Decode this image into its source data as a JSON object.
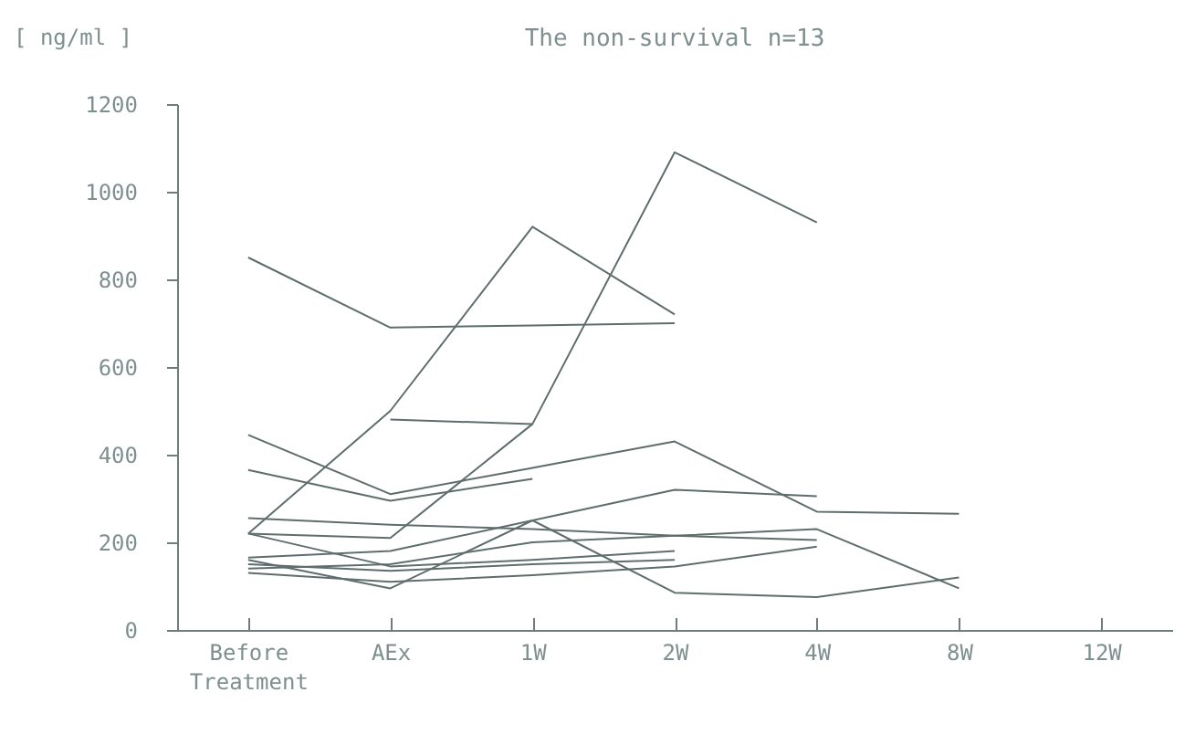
{
  "chart_data": {
    "type": "line",
    "title": "The non-survival n=13",
    "ylabel": "[ ng/ml ]",
    "categories": [
      "Before Treatment",
      "AEx",
      "1W",
      "2W",
      "4W",
      "8W",
      "12W"
    ],
    "ylim": [
      0,
      1200
    ],
    "yticks": [
      0,
      200,
      400,
      600,
      800,
      1000,
      1200
    ],
    "grid": false,
    "legend": false,
    "marker": "none",
    "line_style": "solid",
    "series": [
      {
        "color": "#5f6d6d",
        "values": [
          850,
          690,
          695,
          700,
          null,
          null,
          null
        ]
      },
      {
        "color": "#5f6d6d",
        "values": [
          220,
          500,
          920,
          720,
          null,
          null,
          null
        ]
      },
      {
        "color": "#5f6d6d",
        "values": [
          220,
          210,
          470,
          1090,
          930,
          null,
          null
        ]
      },
      {
        "color": "#5f6d6d",
        "values": [
          null,
          480,
          470,
          null,
          null,
          null,
          null
        ]
      },
      {
        "color": "#5f6d6d",
        "values": [
          445,
          310,
          370,
          430,
          270,
          265,
          null
        ]
      },
      {
        "color": "#5f6d6d",
        "values": [
          365,
          295,
          345,
          null,
          null,
          null,
          null
        ]
      },
      {
        "color": "#5f6d6d",
        "values": [
          165,
          180,
          250,
          320,
          305,
          null,
          null
        ]
      },
      {
        "color": "#5f6d6d",
        "values": [
          255,
          240,
          230,
          215,
          205,
          null,
          null
        ]
      },
      {
        "color": "#5f6d6d",
        "values": [
          160,
          95,
          250,
          85,
          75,
          120,
          null
        ]
      },
      {
        "color": "#5f6d6d",
        "values": [
          220,
          145,
          160,
          180,
          null,
          null,
          null
        ]
      },
      {
        "color": "#5f6d6d",
        "values": [
          140,
          150,
          200,
          215,
          230,
          95,
          null
        ]
      },
      {
        "color": "#5f6d6d",
        "values": [
          130,
          110,
          125,
          145,
          190,
          null,
          null
        ]
      },
      {
        "color": "#5f6d6d",
        "values": [
          150,
          135,
          150,
          160,
          null,
          null,
          null
        ]
      }
    ]
  }
}
